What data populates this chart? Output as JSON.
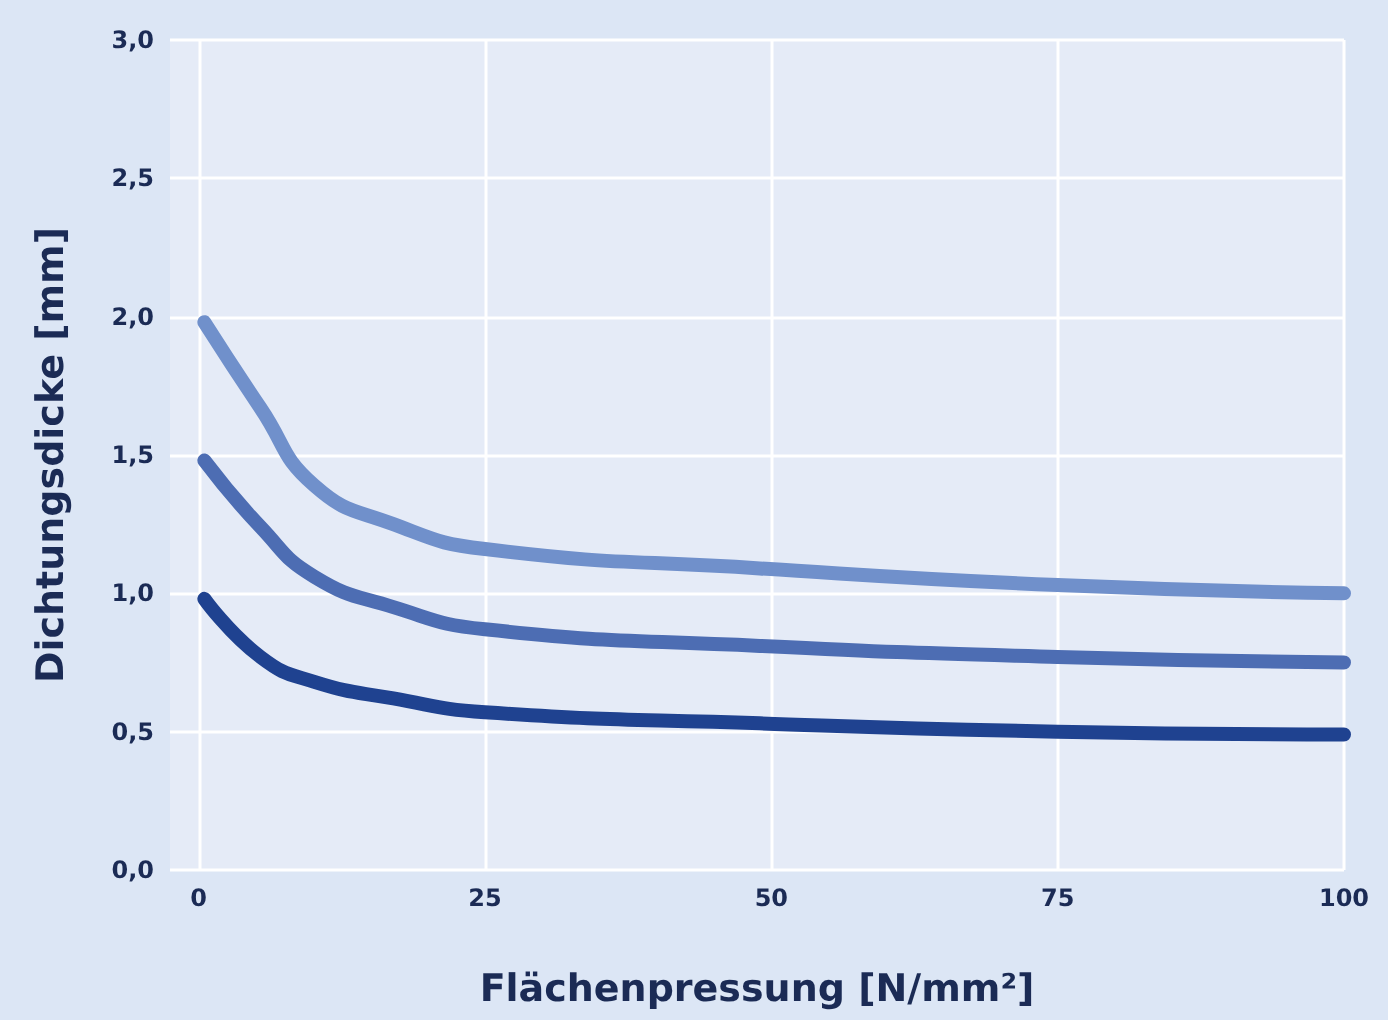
{
  "chart_data": {
    "type": "line",
    "xlabel": "Flächenpressung [N/mm²]",
    "ylabel": "Dichtungsdicke [mm]",
    "xlim": [
      -2.5,
      100
    ],
    "xticks": [
      0,
      25,
      50,
      75,
      100
    ],
    "ylim": [
      0,
      3
    ],
    "yticks": [
      {
        "value": 0,
        "label": "0,0"
      },
      {
        "value": 0.5,
        "label": "0,5"
      },
      {
        "value": 1,
        "label": "1,0"
      },
      {
        "value": 1.5,
        "label": "1,5"
      },
      {
        "value": 2,
        "label": "2,0"
      },
      {
        "value": 2.5,
        "label": "2,5"
      },
      {
        "value": 3,
        "label": "3,0"
      }
    ],
    "grid": true,
    "line_style": "solid",
    "series": [
      {
        "color": "#7090cb",
        "x": [
          0.5,
          5.4,
          10.1,
          17,
          25,
          49,
          75,
          100
        ],
        "values": [
          1.98,
          1.67,
          1.39,
          1.25,
          1.16,
          1.09,
          1.03,
          1.0
        ]
      },
      {
        "color": "#4d6db3",
        "x": [
          0.5,
          5.4,
          10.1,
          17,
          25,
          49,
          75,
          100
        ],
        "values": [
          1.48,
          1.24,
          1.06,
          0.95,
          0.87,
          0.81,
          0.77,
          0.75
        ]
      },
      {
        "color": "#1f4290",
        "x": [
          0.5,
          5.4,
          10.1,
          17,
          25,
          49,
          75,
          100
        ],
        "values": [
          0.98,
          0.77,
          0.68,
          0.62,
          0.57,
          0.53,
          0.5,
          0.49
        ]
      }
    ]
  }
}
